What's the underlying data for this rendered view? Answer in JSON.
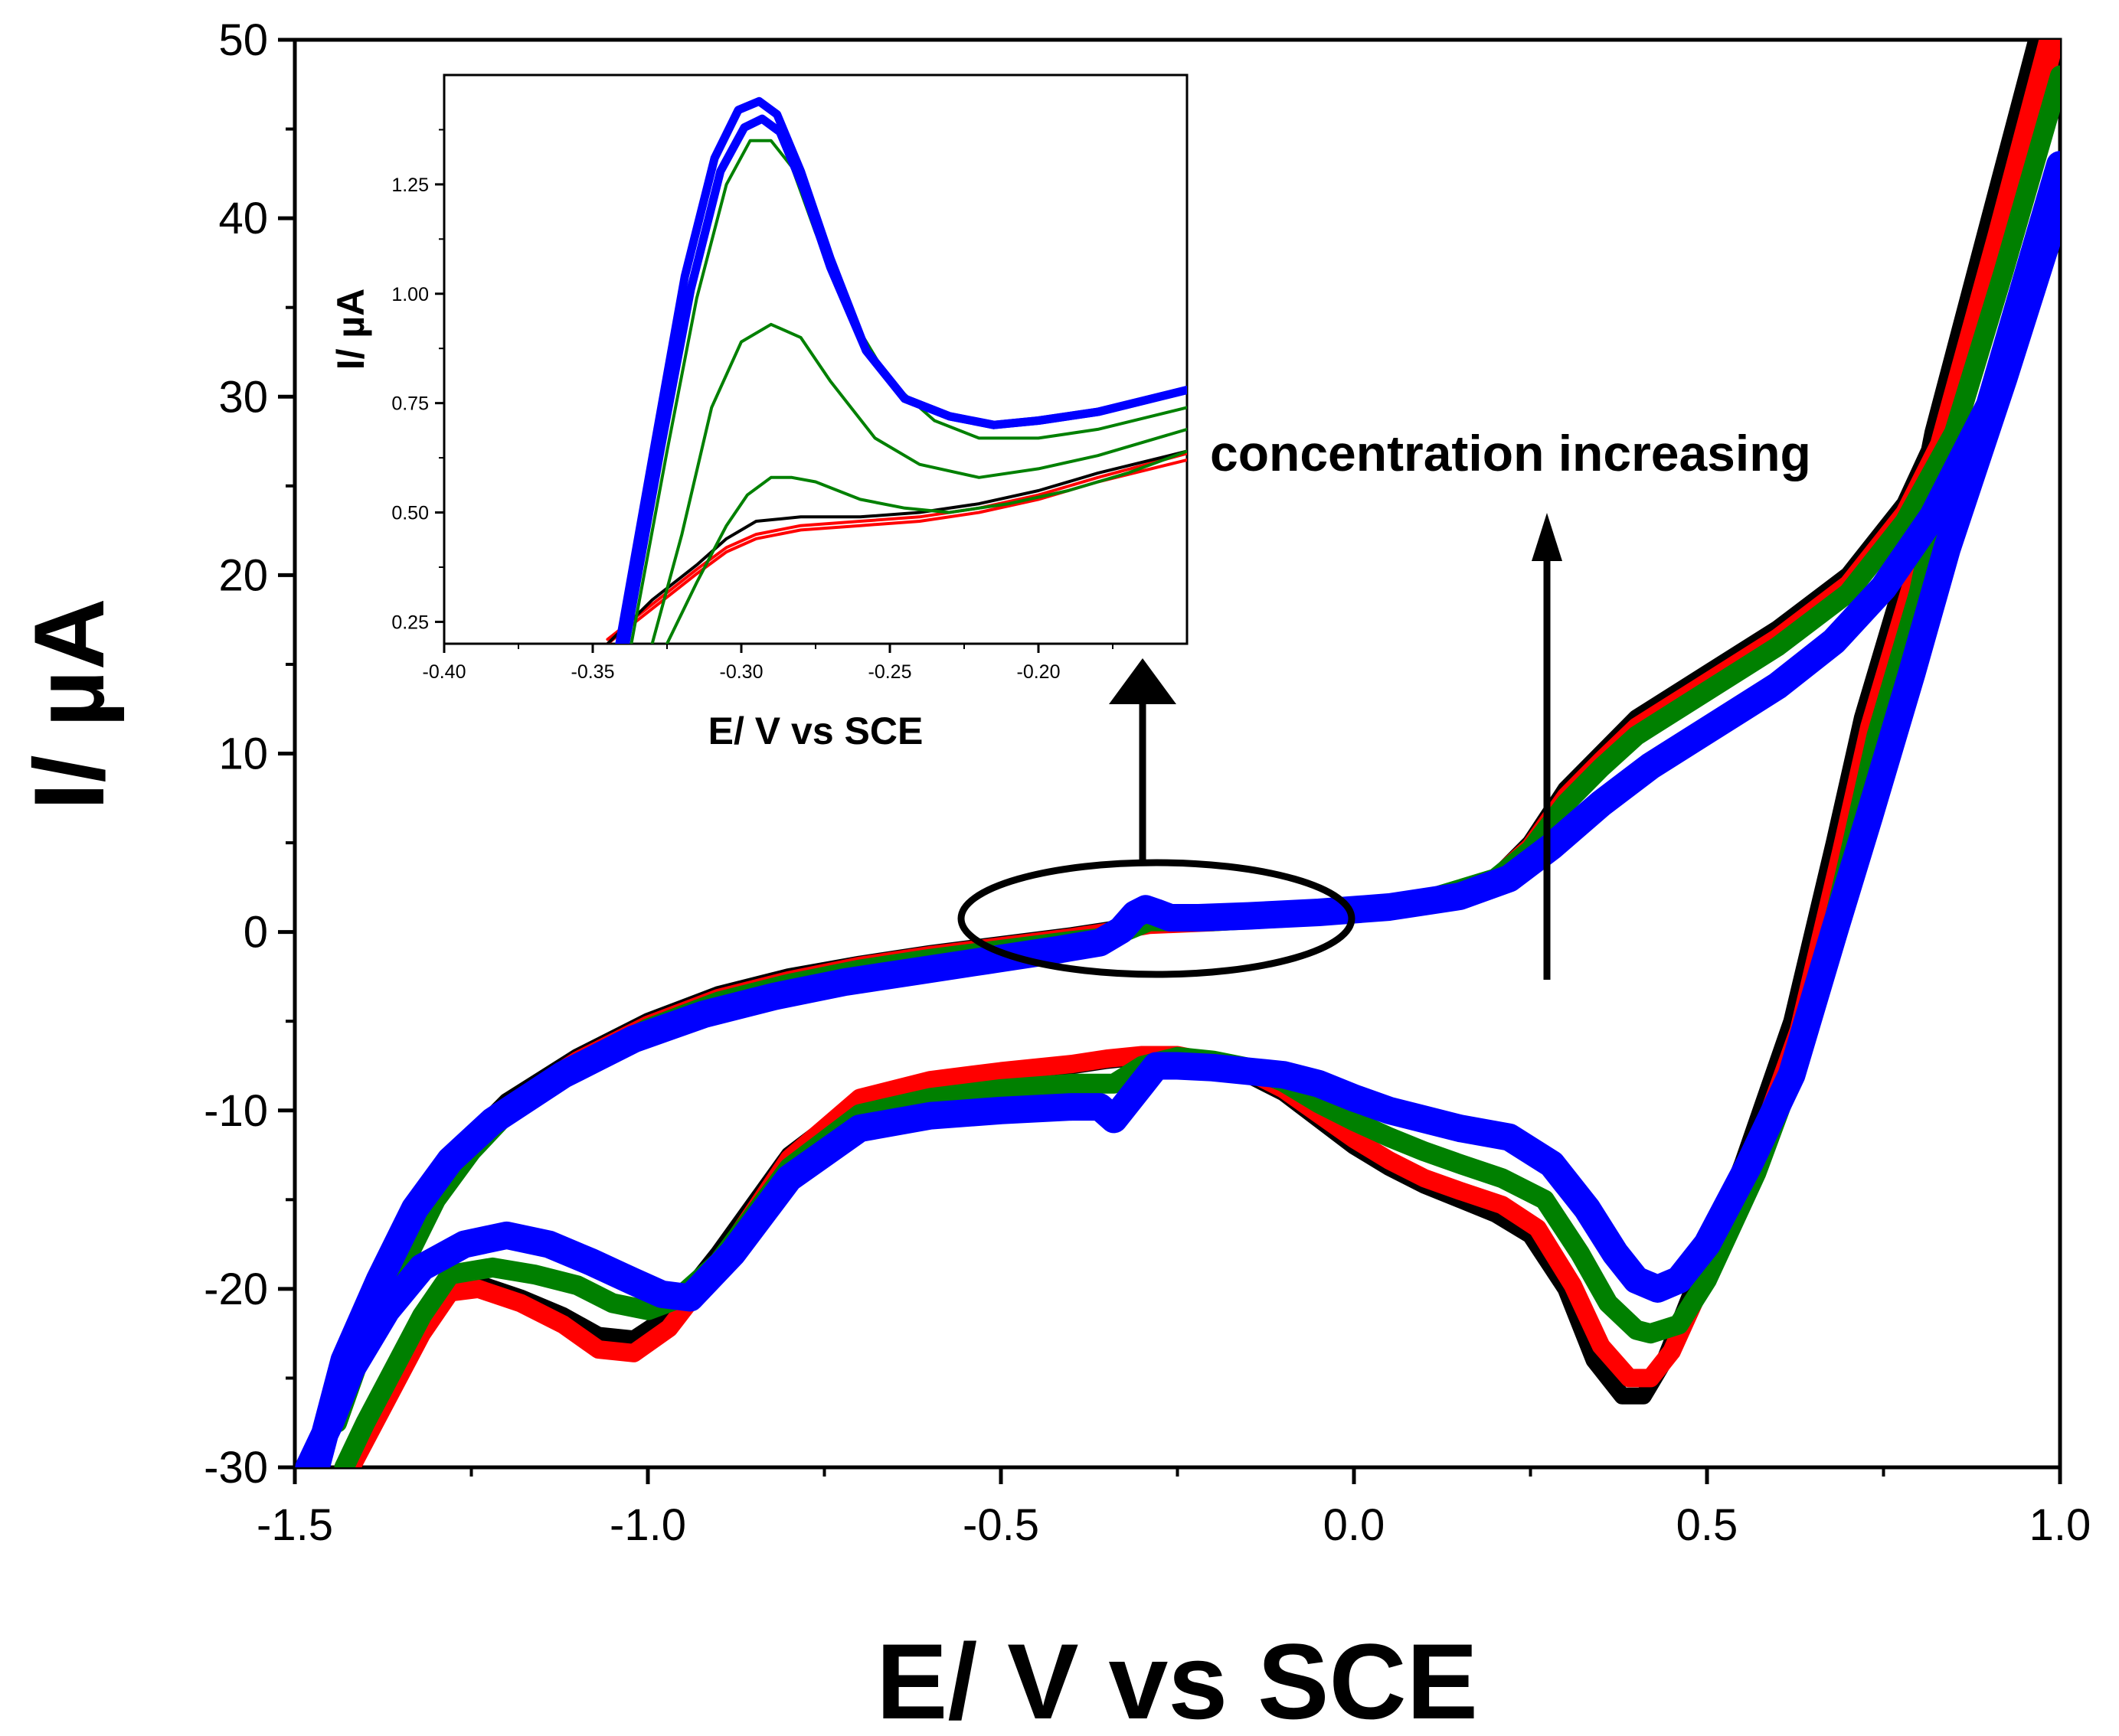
{
  "chart_data": [
    {
      "type": "line",
      "title": "",
      "xlabel": "E/ V vs SCE",
      "ylabel": "I/ µA",
      "xlim": [
        -1.5,
        1.0
      ],
      "ylim": [
        -30,
        50
      ],
      "xticks": [
        -1.5,
        -1.0,
        -0.5,
        0.0,
        0.5,
        1.0
      ],
      "xtick_labels": [
        "-1.5",
        "-1.0",
        "-0.5",
        "0.0",
        "0.5",
        "1.0"
      ],
      "yticks": [
        -30,
        -20,
        -10,
        0,
        10,
        20,
        30,
        40,
        50
      ],
      "ytick_labels": [
        "-30",
        "-20",
        "-10",
        "0",
        "10",
        "20",
        "30",
        "40",
        "50"
      ],
      "annotation": "concentration increasing",
      "series": [
        {
          "name": "black",
          "color": "#000000",
          "forward_x": [
            -1.45,
            -1.4,
            -1.35,
            -1.3,
            -1.25,
            -1.2,
            -1.1,
            -1.0,
            -0.9,
            -0.8,
            -0.7,
            -0.6,
            -0.5,
            -0.4,
            -0.35,
            -0.32,
            -0.29,
            -0.26,
            -0.2,
            -0.1,
            0.0,
            0.1,
            0.2,
            0.25,
            0.3,
            0.35,
            0.4,
            0.5,
            0.6,
            0.7,
            0.78,
            0.85,
            0.92,
            1.0
          ],
          "forward_y": [
            -27,
            -22,
            -18,
            -14,
            -11.5,
            -9.5,
            -7,
            -5,
            -3.5,
            -2.5,
            -1.8,
            -1.2,
            -0.7,
            -0.2,
            0.1,
            0.3,
            0.45,
            0.5,
            0.6,
            0.8,
            1.2,
            1.8,
            3,
            5,
            8,
            10,
            12,
            14.5,
            17,
            20,
            24,
            30,
            40,
            52
          ],
          "reverse_x": [
            0.98,
            0.9,
            0.82,
            0.78,
            0.72,
            0.68,
            0.62,
            0.55,
            0.48,
            0.44,
            0.41,
            0.38,
            0.34,
            0.3,
            0.25,
            0.2,
            0.15,
            0.1,
            0.05,
            0.0,
            -0.05,
            -0.1,
            -0.15,
            -0.2,
            -0.25,
            -0.3,
            -0.35,
            -0.4,
            -0.5,
            -0.6,
            -0.7,
            -0.8,
            -0.9,
            -0.97,
            -1.02,
            -1.07,
            -1.12,
            -1.18,
            -1.24,
            -1.28,
            -1.32,
            -1.36,
            -1.4,
            -1.43
          ],
          "reverse_y": [
            52,
            40,
            28,
            20,
            12,
            5,
            -5,
            -13,
            -20,
            -24,
            -26,
            -26,
            -24,
            -20,
            -17,
            -15.8,
            -15,
            -14.2,
            -13.2,
            -12,
            -10.5,
            -9,
            -8,
            -7.5,
            -7,
            -7,
            -7.2,
            -7.5,
            -8,
            -8.5,
            -9.5,
            -12.5,
            -18,
            -21.5,
            -22.8,
            -22.6,
            -21.5,
            -20.5,
            -19.7,
            -20,
            -22,
            -25,
            -28,
            -30
          ]
        },
        {
          "name": "red",
          "color": "#ff0000",
          "forward_x": [
            -1.44,
            -1.4,
            -1.35,
            -1.3,
            -1.25,
            -1.2,
            -1.1,
            -1.0,
            -0.9,
            -0.8,
            -0.7,
            -0.6,
            -0.5,
            -0.4,
            -0.35,
            -0.32,
            -0.29,
            -0.26,
            -0.2,
            -0.1,
            0.0,
            0.1,
            0.2,
            0.25,
            0.3,
            0.35,
            0.4,
            0.5,
            0.6,
            0.7,
            0.78,
            0.85,
            0.92,
            1.0
          ],
          "forward_y": [
            -27,
            -22.5,
            -18.5,
            -14.5,
            -12,
            -9.8,
            -7.2,
            -5.2,
            -3.7,
            -2.7,
            -1.9,
            -1.3,
            -0.8,
            -0.3,
            0.0,
            0.2,
            0.4,
            0.45,
            0.55,
            0.8,
            1.2,
            1.8,
            3,
            4.8,
            7.6,
            9.6,
            11.5,
            14,
            16.5,
            19.5,
            23.5,
            29,
            39,
            51
          ],
          "reverse_x": [
            0.99,
            0.91,
            0.83,
            0.79,
            0.73,
            0.69,
            0.63,
            0.56,
            0.49,
            0.45,
            0.42,
            0.39,
            0.35,
            0.31,
            0.26,
            0.21,
            0.15,
            0.1,
            0.05,
            0.0,
            -0.05,
            -0.1,
            -0.15,
            -0.2,
            -0.25,
            -0.3,
            -0.35,
            -0.4,
            -0.5,
            -0.6,
            -0.7,
            -0.8,
            -0.9,
            -0.97,
            -1.02,
            -1.07,
            -1.12,
            -1.18,
            -1.24,
            -1.28,
            -1.32,
            -1.36,
            -1.4,
            -1.42
          ],
          "reverse_y": [
            51,
            39,
            27.5,
            19.5,
            11.5,
            4.5,
            -5.5,
            -13.2,
            -20,
            -23.5,
            -25,
            -25,
            -23.2,
            -19.8,
            -16.6,
            -15.3,
            -14.5,
            -13.8,
            -12.8,
            -11.6,
            -10.2,
            -8.8,
            -7.8,
            -7.3,
            -6.9,
            -6.9,
            -7.1,
            -7.4,
            -7.8,
            -8.3,
            -9.3,
            -12.7,
            -18.6,
            -22.2,
            -23.6,
            -23.4,
            -22,
            -20.8,
            -20,
            -20.2,
            -22.5,
            -25.5,
            -28.5,
            -30
          ]
        },
        {
          "name": "green",
          "color": "#008000",
          "forward_x": [
            -1.44,
            -1.4,
            -1.35,
            -1.3,
            -1.25,
            -1.2,
            -1.1,
            -1.0,
            -0.9,
            -0.8,
            -0.7,
            -0.6,
            -0.5,
            -0.4,
            -0.35,
            -0.32,
            -0.29,
            -0.26,
            -0.2,
            -0.1,
            0.0,
            0.1,
            0.2,
            0.25,
            0.3,
            0.35,
            0.4,
            0.5,
            0.6,
            0.7,
            0.78,
            0.85,
            0.92,
            1.0
          ],
          "forward_y": [
            -27.5,
            -23,
            -19,
            -15,
            -12.3,
            -10.2,
            -7.5,
            -5.4,
            -3.9,
            -2.9,
            -2.1,
            -1.5,
            -1.0,
            -0.5,
            -0.3,
            0.1,
            0.6,
            0.6,
            0.6,
            0.8,
            1.2,
            1.8,
            3,
            4.6,
            7.2,
            9.2,
            11,
            13.5,
            16,
            19,
            23,
            28,
            37,
            48
          ],
          "reverse_x": [
            1.0,
            0.92,
            0.84,
            0.8,
            0.74,
            0.7,
            0.64,
            0.57,
            0.5,
            0.46,
            0.42,
            0.4,
            0.36,
            0.32,
            0.27,
            0.21,
            0.15,
            0.1,
            0.05,
            0.0,
            -0.05,
            -0.1,
            -0.15,
            -0.2,
            -0.25,
            -0.3,
            -0.34,
            -0.4,
            -0.5,
            -0.6,
            -0.7,
            -0.8,
            -0.9,
            -0.96,
            -1.0,
            -1.05,
            -1.1,
            -1.16,
            -1.22,
            -1.28,
            -1.32,
            -1.36,
            -1.4,
            -1.43
          ],
          "reverse_y": [
            48,
            37,
            26.5,
            19,
            11,
            4,
            -6,
            -13.5,
            -19.5,
            -22,
            -22.5,
            -22.3,
            -20.8,
            -18,
            -15,
            -13.8,
            -13,
            -12.3,
            -11.5,
            -10.6,
            -9.6,
            -8.4,
            -7.6,
            -7.2,
            -7,
            -7.5,
            -8.5,
            -8.5,
            -8.8,
            -9.3,
            -10.2,
            -13.2,
            -18.5,
            -20.6,
            -21.2,
            -20.8,
            -19.8,
            -19.2,
            -18.8,
            -19.2,
            -21.5,
            -24.5,
            -27.5,
            -30
          ]
        },
        {
          "name": "blue",
          "color": "#0000ff",
          "forward_x": [
            -1.47,
            -1.43,
            -1.38,
            -1.33,
            -1.28,
            -1.22,
            -1.12,
            -1.02,
            -0.92,
            -0.82,
            -0.72,
            -0.62,
            -0.52,
            -0.42,
            -0.36,
            -0.33,
            -0.31,
            -0.295,
            -0.28,
            -0.26,
            -0.22,
            -0.15,
            -0.05,
            0.05,
            0.15,
            0.22,
            0.28,
            0.35,
            0.42,
            0.5,
            0.6,
            0.68,
            0.75,
            0.82,
            0.9,
            1.0
          ],
          "forward_y": [
            -30,
            -24,
            -19.5,
            -15.5,
            -12.8,
            -10.6,
            -8,
            -6,
            -4.6,
            -3.6,
            -2.8,
            -2.2,
            -1.6,
            -1.0,
            -0.6,
            0.1,
            1.0,
            1.3,
            1.1,
            0.8,
            0.8,
            0.9,
            1.1,
            1.4,
            2.0,
            3.0,
            4.8,
            7.2,
            9.3,
            11.3,
            13.8,
            16.3,
            19.3,
            23.3,
            29.5,
            43
          ],
          "reverse_x": [
            1.0,
            0.92,
            0.84,
            0.79,
            0.73,
            0.68,
            0.62,
            0.56,
            0.5,
            0.46,
            0.43,
            0.4,
            0.37,
            0.33,
            0.28,
            0.22,
            0.15,
            0.1,
            0.05,
            0.0,
            -0.05,
            -0.1,
            -0.15,
            -0.2,
            -0.25,
            -0.28,
            -0.3,
            -0.32,
            -0.34,
            -0.36,
            -0.4,
            -0.5,
            -0.6,
            -0.7,
            -0.8,
            -0.88,
            -0.94,
            -0.98,
            -1.02,
            -1.08,
            -1.14,
            -1.2,
            -1.26,
            -1.32,
            -1.37,
            -1.42,
            -1.45,
            -1.48
          ],
          "reverse_y": [
            41,
            31,
            21.5,
            14.5,
            6.5,
            0,
            -8,
            -13,
            -17.5,
            -19.5,
            -20,
            -19.5,
            -18,
            -15.5,
            -13,
            -11.5,
            -11,
            -10.5,
            -10,
            -9.3,
            -8.5,
            -8,
            -7.8,
            -7.6,
            -7.5,
            -7.5,
            -8.5,
            -9.5,
            -10.5,
            -9.8,
            -9.8,
            -10,
            -10.3,
            -11,
            -13.8,
            -18,
            -20.5,
            -20.3,
            -19.6,
            -18.5,
            -17.5,
            -17,
            -17.5,
            -18.8,
            -21.2,
            -24.5,
            -27.5,
            -30
          ]
        }
      ]
    },
    {
      "type": "line",
      "title": "",
      "xlabel": "E/ V vs SCE",
      "ylabel": "I/ µA",
      "xlim": [
        -0.4,
        -0.15
      ],
      "ylim": [
        0.2,
        1.5
      ],
      "xticks": [
        -0.4,
        -0.35,
        -0.3,
        -0.25,
        -0.2
      ],
      "xtick_labels": [
        "-0.40",
        "-0.35",
        "-0.30",
        "-0.25",
        "-0.20"
      ],
      "yticks": [
        0.25,
        0.5,
        0.75,
        1.0,
        1.25
      ],
      "ytick_labels": [
        "0.25",
        "0.50",
        "0.75",
        "1.00",
        "1.25"
      ],
      "series": [
        {
          "name": "red-1",
          "color": "#ff0000",
          "x": [
            -0.345,
            -0.33,
            -0.315,
            -0.305,
            -0.295,
            -0.28,
            -0.26,
            -0.24,
            -0.22,
            -0.2,
            -0.18,
            -0.15
          ],
          "y": [
            0.2,
            0.28,
            0.36,
            0.41,
            0.44,
            0.46,
            0.47,
            0.48,
            0.5,
            0.53,
            0.57,
            0.62
          ]
        },
        {
          "name": "red-2",
          "color": "#ff0000",
          "x": [
            -0.345,
            -0.33,
            -0.315,
            -0.305,
            -0.295,
            -0.28,
            -0.26,
            -0.24,
            -0.22,
            -0.2,
            -0.18,
            -0.15
          ],
          "y": [
            0.21,
            0.29,
            0.37,
            0.42,
            0.45,
            0.47,
            0.48,
            0.49,
            0.51,
            0.54,
            0.58,
            0.635
          ]
        },
        {
          "name": "black",
          "color": "#000000",
          "x": [
            -0.345,
            -0.33,
            -0.315,
            -0.305,
            -0.295,
            -0.28,
            -0.26,
            -0.24,
            -0.22,
            -0.2,
            -0.18,
            -0.15
          ],
          "y": [
            0.2,
            0.3,
            0.38,
            0.44,
            0.48,
            0.49,
            0.49,
            0.5,
            0.52,
            0.55,
            0.59,
            0.64
          ]
        },
        {
          "name": "green-1",
          "color": "#008000",
          "x": [
            -0.325,
            -0.315,
            -0.305,
            -0.298,
            -0.29,
            -0.283,
            -0.275,
            -0.26,
            -0.245,
            -0.23,
            -0.21,
            -0.19,
            -0.17,
            -0.15
          ],
          "y": [
            0.2,
            0.34,
            0.47,
            0.54,
            0.58,
            0.58,
            0.57,
            0.53,
            0.51,
            0.5,
            0.52,
            0.55,
            0.59,
            0.64
          ]
        },
        {
          "name": "green-2",
          "color": "#008000",
          "x": [
            -0.33,
            -0.32,
            -0.31,
            -0.3,
            -0.29,
            -0.28,
            -0.27,
            -0.255,
            -0.24,
            -0.22,
            -0.2,
            -0.18,
            -0.15
          ],
          "y": [
            0.2,
            0.45,
            0.74,
            0.89,
            0.93,
            0.9,
            0.8,
            0.67,
            0.61,
            0.58,
            0.6,
            0.63,
            0.69
          ]
        },
        {
          "name": "green-3",
          "color": "#008000",
          "x": [
            -0.337,
            -0.325,
            -0.315,
            -0.305,
            -0.297,
            -0.29,
            -0.283,
            -0.275,
            -0.265,
            -0.25,
            -0.235,
            -0.22,
            -0.2,
            -0.18,
            -0.15
          ],
          "y": [
            0.2,
            0.64,
            0.99,
            1.25,
            1.35,
            1.35,
            1.29,
            1.14,
            0.97,
            0.8,
            0.71,
            0.67,
            0.67,
            0.69,
            0.74
          ]
        },
        {
          "name": "blue-1",
          "color": "#0000ff",
          "x": [
            -0.339,
            -0.327,
            -0.317,
            -0.307,
            -0.299,
            -0.293,
            -0.287,
            -0.279,
            -0.27,
            -0.258,
            -0.245,
            -0.23,
            -0.215,
            -0.2,
            -0.18,
            -0.15
          ],
          "y": [
            0.2,
            0.65,
            1.01,
            1.28,
            1.38,
            1.4,
            1.37,
            1.24,
            1.06,
            0.87,
            0.76,
            0.72,
            0.7,
            0.71,
            0.73,
            0.78
          ]
        },
        {
          "name": "blue-2",
          "color": "#0000ff",
          "x": [
            -0.341,
            -0.329,
            -0.319,
            -0.309,
            -0.301,
            -0.294,
            -0.288,
            -0.28,
            -0.27,
            -0.258,
            -0.245,
            -0.23,
            -0.215,
            -0.2,
            -0.18,
            -0.15
          ],
          "y": [
            0.2,
            0.66,
            1.04,
            1.31,
            1.42,
            1.44,
            1.41,
            1.28,
            1.08,
            0.87,
            0.76,
            0.72,
            0.7,
            0.71,
            0.73,
            0.78
          ]
        }
      ]
    }
  ]
}
